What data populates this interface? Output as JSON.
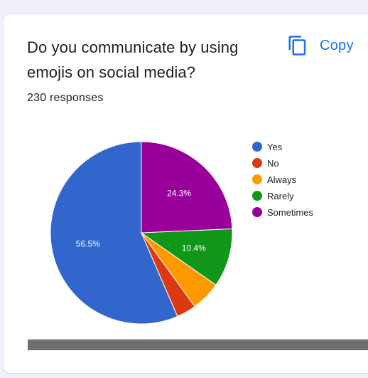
{
  "card": {
    "question": "Do you communicate by using emojis on social media?",
    "responses": "230 responses",
    "copy_label": "Copy"
  },
  "chart_data": {
    "type": "pie",
    "categories": [
      "Yes",
      "No",
      "Always",
      "Rarely",
      "Sometimes"
    ],
    "values": [
      56.5,
      3.5,
      5.3,
      10.4,
      24.3
    ],
    "labels": [
      "56.5%",
      "",
      "",
      "10.4%",
      "24.3%"
    ],
    "colors": [
      "#3366cc",
      "#dc3912",
      "#ff9900",
      "#109618",
      "#990099"
    ],
    "legend_position": "right"
  },
  "icons": {
    "copy": "copy-icon"
  }
}
